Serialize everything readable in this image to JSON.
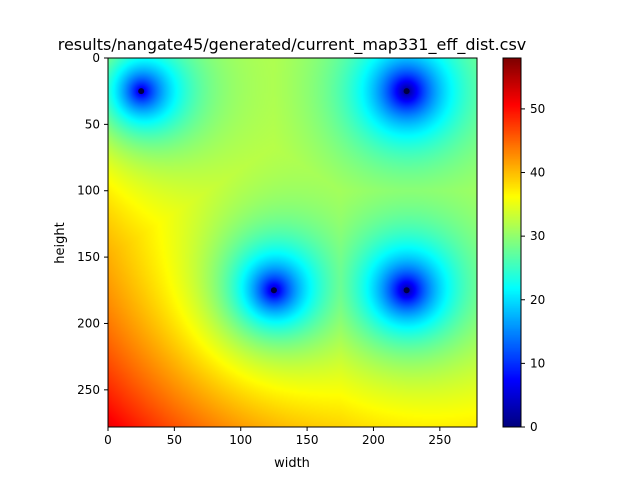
{
  "chart_data": {
    "type": "heatmap",
    "title": "results/nangate45/generated/current_map331_eff_dist.csv",
    "xlabel": "width",
    "ylabel": "height",
    "xlim": [
      0,
      278
    ],
    "ylim": [
      278,
      0
    ],
    "x_ticks": [
      0,
      50,
      100,
      150,
      200,
      250
    ],
    "y_ticks": [
      0,
      50,
      100,
      150,
      200,
      250
    ],
    "colormap": "jet",
    "colorbar": {
      "min": 0,
      "max": 58,
      "ticks": [
        0,
        10,
        20,
        30,
        40,
        50
      ]
    },
    "grid_size": [
      278,
      278
    ],
    "sources": [
      {
        "x": 25,
        "y": 25
      },
      {
        "x": 225,
        "y": 25
      },
      {
        "x": 125,
        "y": 175
      },
      {
        "x": 225,
        "y": 175
      }
    ],
    "value_range_observed": {
      "min": 0,
      "max": 58
    },
    "grid": false
  }
}
